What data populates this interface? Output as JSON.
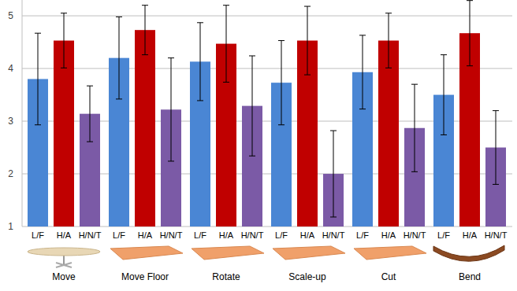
{
  "chart_data": {
    "type": "bar",
    "categories": [
      "Move",
      "Move Floor",
      "Rotate",
      "Scale-up",
      "Cut",
      "Bend"
    ],
    "series": [
      {
        "name": "L/F",
        "color": "#4a86d4",
        "values": [
          3.8,
          4.2,
          4.13,
          3.73,
          3.93,
          3.5
        ],
        "errors": [
          0.87,
          0.78,
          0.74,
          0.8,
          0.7,
          0.76
        ]
      },
      {
        "name": "H/A",
        "color": "#c00000",
        "values": [
          4.53,
          4.73,
          4.47,
          4.53,
          4.53,
          4.67
        ],
        "errors": [
          0.52,
          0.47,
          0.73,
          0.65,
          0.52,
          0.62
        ]
      },
      {
        "name": "H/N/T",
        "color": "#7b5aa6",
        "values": [
          3.14,
          3.22,
          3.29,
          2.0,
          2.87,
          2.5
        ],
        "errors": [
          0.53,
          0.98,
          0.95,
          0.82,
          0.83,
          0.7
        ]
      }
    ],
    "ylim": [
      1,
      5.3
    ],
    "yticks": [
      1,
      2,
      3,
      4,
      5
    ],
    "grid": true
  }
}
